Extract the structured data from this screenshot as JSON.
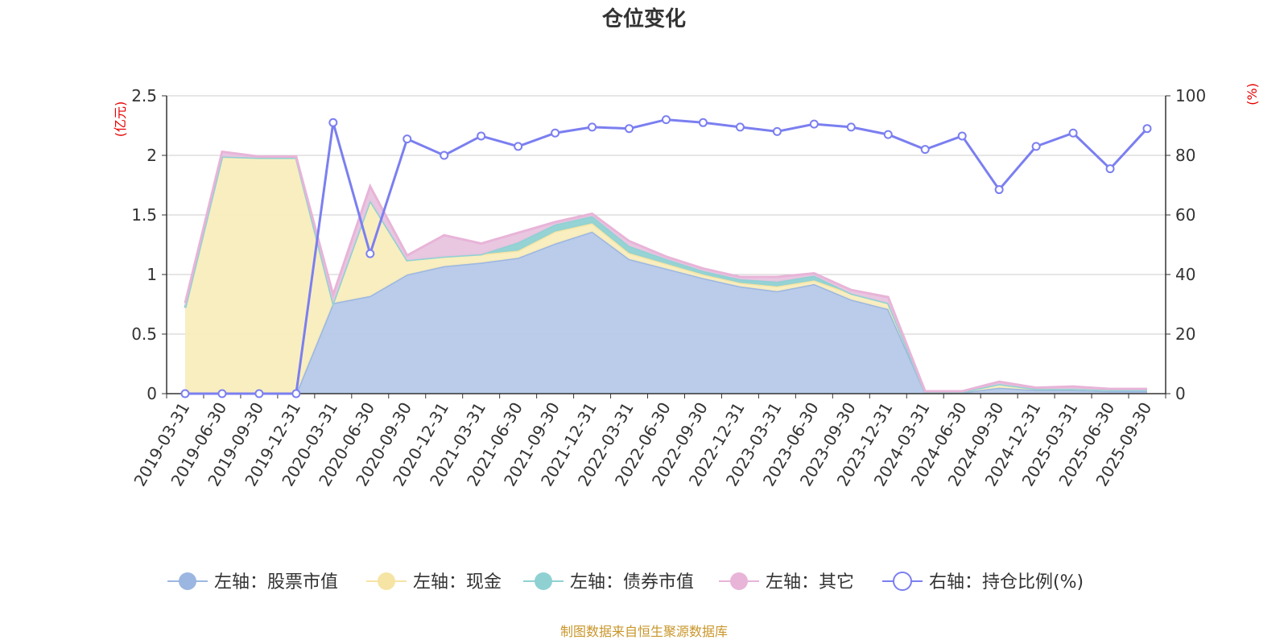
{
  "chart_data": {
    "type": "area",
    "title": "仓位变化",
    "left_unit": "(亿元)",
    "right_unit": "(%)",
    "source": "制图数据来自恒生聚源数据库",
    "categories": [
      "2019-03-31",
      "2019-06-30",
      "2019-09-30",
      "2019-12-31",
      "2020-03-31",
      "2020-06-30",
      "2020-09-30",
      "2020-12-31",
      "2021-03-31",
      "2021-06-30",
      "2021-09-30",
      "2021-12-31",
      "2022-03-31",
      "2022-06-30",
      "2022-09-30",
      "2022-12-31",
      "2023-03-31",
      "2023-06-30",
      "2023-09-30",
      "2023-12-31",
      "2024-03-31",
      "2024-06-30",
      "2024-09-30",
      "2024-12-31",
      "2025-03-31",
      "2025-06-30",
      "2025-09-30"
    ],
    "left_axis": {
      "min": 0,
      "max": 2.5,
      "ticks": [
        0,
        0.5,
        1,
        1.5,
        2,
        2.5
      ],
      "tick_labels": [
        "0",
        "0.5",
        "1",
        "1.5",
        "2",
        "2.5"
      ]
    },
    "right_axis": {
      "min": 0,
      "max": 100,
      "ticks": [
        0,
        20,
        40,
        60,
        80,
        100
      ],
      "tick_labels": [
        "0",
        "20",
        "40",
        "60",
        "80",
        "100"
      ]
    },
    "series": [
      {
        "name": "左轴：股票市值",
        "axis": "left",
        "color": "#9bb6e0",
        "fill": "#b6c9e9",
        "values": [
          0,
          0,
          0,
          0,
          0.76,
          0.82,
          1.0,
          1.07,
          1.1,
          1.14,
          1.26,
          1.36,
          1.13,
          1.05,
          0.97,
          0.9,
          0.86,
          0.92,
          0.79,
          0.71,
          0.01,
          0.01,
          0.05,
          0.03,
          0.03,
          0.02,
          0.02
        ]
      },
      {
        "name": "左轴：现金",
        "axis": "left",
        "color": "#f6e4a4",
        "fill": "#f9edbd",
        "values": [
          0.72,
          1.99,
          1.98,
          1.98,
          0,
          0.8,
          0.12,
          0.08,
          0.07,
          0.06,
          0.1,
          0.07,
          0.05,
          0.04,
          0.03,
          0.03,
          0.04,
          0.03,
          0.05,
          0.05,
          0.005,
          0.005,
          0.03,
          0.01,
          0.01,
          0.01,
          0.01
        ]
      },
      {
        "name": "左轴：债券市值",
        "axis": "left",
        "color": "#8fd1d3",
        "fill": "#8fd1d3",
        "values": [
          0,
          0,
          0,
          0,
          0,
          0,
          0,
          0,
          0,
          0.07,
          0.06,
          0.06,
          0.06,
          0.04,
          0.03,
          0.03,
          0.04,
          0.04,
          0,
          0,
          0,
          0,
          0,
          0,
          0,
          0,
          0
        ]
      },
      {
        "name": "左轴：其它",
        "axis": "left",
        "color": "#e8b4d8",
        "fill": "#e8c4df",
        "values": [
          0.04,
          0.04,
          0.01,
          0.01,
          0.07,
          0.12,
          0.04,
          0.18,
          0.09,
          0.08,
          0.02,
          0.02,
          0.04,
          0.02,
          0.02,
          0.02,
          0.04,
          0.02,
          0.03,
          0.05,
          0.005,
          0.005,
          0.02,
          0.01,
          0.02,
          0.01,
          0.01
        ]
      },
      {
        "name": "右轴：持仓比例(%)",
        "axis": "right",
        "color": "#7b7ff0",
        "values": [
          0,
          0,
          0,
          0,
          91,
          47,
          85.5,
          80,
          86.5,
          83,
          87.5,
          89.5,
          89,
          92,
          91,
          89.5,
          88,
          90.5,
          89.5,
          87,
          82,
          86.5,
          68.5,
          83,
          87.5,
          75.5,
          89
        ]
      }
    ]
  }
}
